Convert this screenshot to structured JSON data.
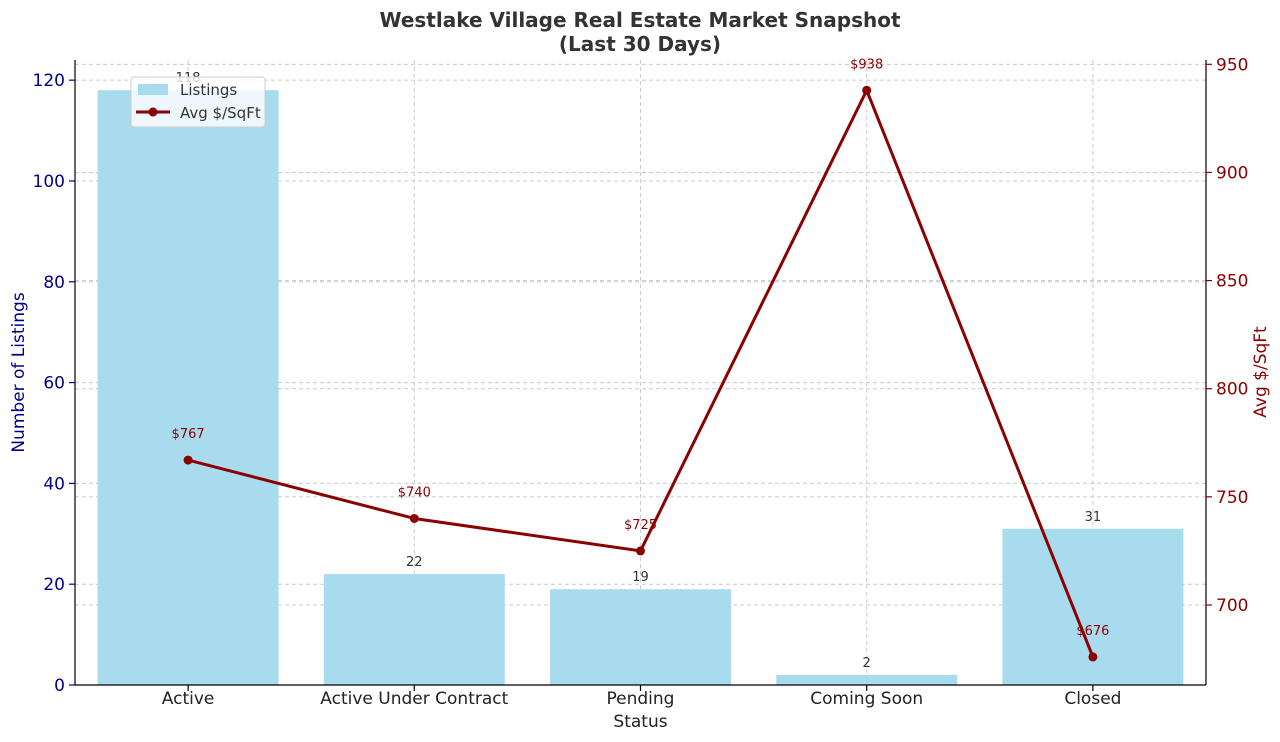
{
  "chart_data": {
    "type": "bar",
    "title_line1": "Westlake Village Real Estate Market Snapshot",
    "title_line2": "(Last 30 Days)",
    "xlabel": "Status",
    "ylabel_left": "Number of Listings",
    "ylabel_right": "Avg $/SqFt",
    "categories": [
      "Active",
      "Active Under Contract",
      "Pending",
      "Coming Soon",
      "Closed"
    ],
    "series": [
      {
        "name": "Listings",
        "type": "bar",
        "axis": "left",
        "values": [
          118,
          22,
          19,
          2,
          31
        ],
        "labels": [
          "118",
          "22",
          "19",
          "2",
          "31"
        ],
        "color": "#a8dbee"
      },
      {
        "name": "Avg $/SqFt",
        "type": "line",
        "axis": "right",
        "values": [
          767,
          740,
          725,
          938,
          676
        ],
        "labels": [
          "$767",
          "$740",
          "$725",
          "$938",
          "$676"
        ],
        "color": "#8b0000"
      }
    ],
    "ylim_left": [
      0,
      124
    ],
    "yticks_left": [
      "0",
      "20",
      "40",
      "60",
      "80",
      "100",
      "120"
    ],
    "ylim_right": [
      663,
      952
    ],
    "yticks_right": [
      "700",
      "750",
      "800",
      "850",
      "900",
      "950"
    ],
    "grid": true,
    "legend_position": "top-left",
    "colors": {
      "left_axis": "#00008b",
      "right_axis": "#8b0000",
      "grid": "#cccccc",
      "title": "#333333"
    }
  }
}
